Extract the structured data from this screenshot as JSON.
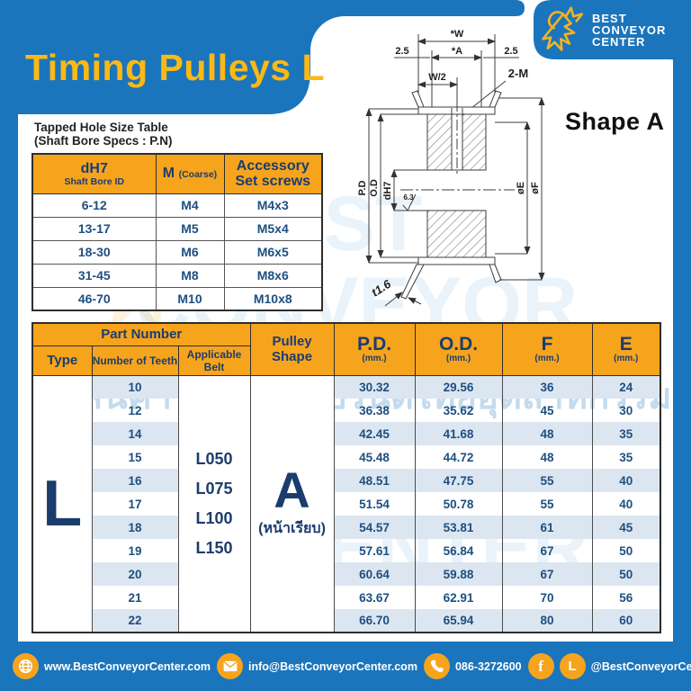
{
  "page": {
    "title": "Timing Pulleys L",
    "shape_label": "Shape A"
  },
  "brand": {
    "line1": "BEST",
    "line2": "CONVEYOR",
    "line3": "CENTER"
  },
  "watermark": {
    "line1": "BEST",
    "line2": "CONVEYOR",
    "line3": "CENTER",
    "tagline": "สินค้าโรงงาน แบรนด์ไทยอุตสาหกรรม"
  },
  "tapped_hole_table": {
    "title_line1": "Tapped Hole Size Table",
    "title_line2": "(Shaft Bore Specs : P.N)",
    "headers": {
      "col1_main": "dH7",
      "col1_sub": "Shaft Bore ID",
      "col2_main": "M",
      "col2_sub": "(Coarse)",
      "col3_line1": "Accessory",
      "col3_line2": "Set screws"
    },
    "rows": [
      [
        "6-12",
        "M4",
        "M4x3"
      ],
      [
        "13-17",
        "M5",
        "M5x4"
      ],
      [
        "18-30",
        "M6",
        "M6x5"
      ],
      [
        "31-45",
        "M8",
        "M8x6"
      ],
      [
        "46-70",
        "M10",
        "M10x8"
      ]
    ]
  },
  "drawing": {
    "labels": {
      "w": "*W",
      "a": "*A",
      "left_offset": "2.5",
      "right_offset": "2.5",
      "half_w": "W/2",
      "tap": "2-M",
      "pd": "P.D",
      "od": "O.D",
      "bore": "dH7",
      "finish": "6.3",
      "dia_e": "øE",
      "dia_f": "øF",
      "thickness": "t1.6"
    }
  },
  "main_table": {
    "headers": {
      "part_number": "Part Number",
      "type": "Type",
      "teeth": "Number of Teeth",
      "belt": "Applicable Belt",
      "pulley_shape": "Pulley Shape",
      "pd": "P.D.",
      "od": "O.D.",
      "f": "F",
      "e": "E",
      "mm_unit": "(mm.)"
    },
    "type": "L",
    "belts": [
      "L050",
      "L075",
      "L100",
      "L150"
    ],
    "pulley_shape_letter": "A",
    "pulley_shape_note": "(หน้าเรียบ)",
    "rows": [
      {
        "teeth": "10",
        "pd": "30.32",
        "od": "29.56",
        "f": "36",
        "e": "24"
      },
      {
        "teeth": "12",
        "pd": "36.38",
        "od": "35.62",
        "f": "45",
        "e": "30"
      },
      {
        "teeth": "14",
        "pd": "42.45",
        "od": "41.68",
        "f": "48",
        "e": "35"
      },
      {
        "teeth": "15",
        "pd": "45.48",
        "od": "44.72",
        "f": "48",
        "e": "35"
      },
      {
        "teeth": "16",
        "pd": "48.51",
        "od": "47.75",
        "f": "55",
        "e": "40"
      },
      {
        "teeth": "17",
        "pd": "51.54",
        "od": "50.78",
        "f": "55",
        "e": "40"
      },
      {
        "teeth": "18",
        "pd": "54.57",
        "od": "53.81",
        "f": "61",
        "e": "45"
      },
      {
        "teeth": "19",
        "pd": "57.61",
        "od": "56.84",
        "f": "67",
        "e": "50"
      },
      {
        "teeth": "20",
        "pd": "60.64",
        "od": "59.88",
        "f": "67",
        "e": "50"
      },
      {
        "teeth": "21",
        "pd": "63.67",
        "od": "62.91",
        "f": "70",
        "e": "56"
      },
      {
        "teeth": "22",
        "pd": "66.70",
        "od": "65.94",
        "f": "80",
        "e": "60"
      }
    ]
  },
  "footer": {
    "website": "www.BestConveyorCenter.com",
    "email": "info@BestConveyorCenter.com",
    "phone": "086-3272600",
    "social": "@BestConveyorCenter",
    "fb_glyph": "f",
    "line_glyph": "L"
  },
  "colors": {
    "blue": "#1B75BC",
    "orange": "#F7A41D",
    "title_yellow": "#FDB913",
    "navy": "#1B3D6D",
    "value_blue": "#1D4F80",
    "stripe": "#DCE6F1"
  }
}
